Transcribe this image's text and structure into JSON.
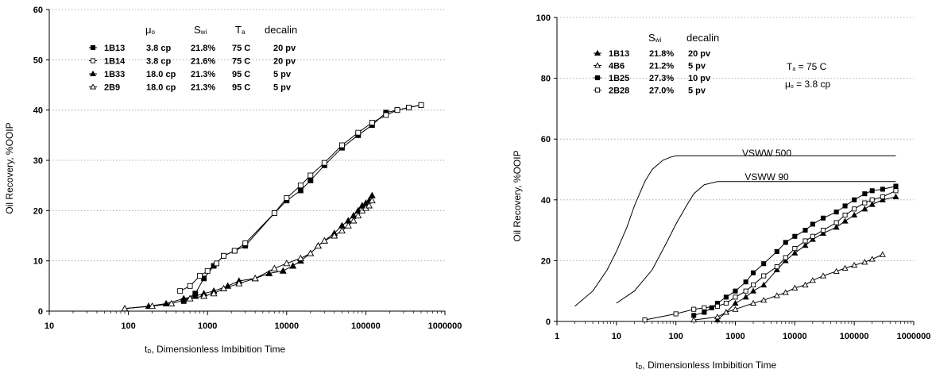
{
  "chart_data": [
    {
      "type": "line",
      "xscale": "log",
      "xlim": [
        10,
        1000000
      ],
      "ylim": [
        0,
        60
      ],
      "xticks": [
        10,
        100,
        1000,
        10000,
        100000,
        1000000
      ],
      "xtick_labels": [
        "10",
        "100",
        "1000",
        "10000",
        "100000",
        "1000000"
      ],
      "yticks": [
        0,
        10,
        20,
        30,
        40,
        50,
        60
      ],
      "ytick_labels": [
        "0",
        "10",
        "20",
        "30",
        "40",
        "50",
        "60"
      ],
      "xlabel_prefix": "t",
      "xlabel_sub": "D",
      "xlabel_rest": ", Dimensionless Imbibition Time",
      "ylabel": "Oil Recovery, %OOIP",
      "grid": "horizontal-dotted",
      "legend_header": [
        {
          "main": "μ",
          "sub": "o"
        },
        {
          "main": "S",
          "sub": "wi"
        },
        {
          "main": "T",
          "sub": "a"
        },
        {
          "main": "decalin",
          "sub": ""
        }
      ],
      "legend_rows": [
        [
          "1B13",
          "3.8 cp",
          "21.8%",
          "75 C",
          "20 pv"
        ],
        [
          "1B14",
          "3.8 cp",
          "21.6%",
          "75 C",
          "20 pv"
        ],
        [
          "1B33",
          "18.0 cp",
          "21.3%",
          "95 C",
          "5 pv"
        ],
        [
          "2B9",
          "18.0 cp",
          "21.3%",
          "95 C",
          "5 pv"
        ]
      ],
      "series": [
        {
          "name": "1B13",
          "marker": "filled-square",
          "x": [
            500,
            700,
            900,
            1200,
            1600,
            2200,
            3000,
            7000,
            10000,
            15000,
            20000,
            30000,
            50000,
            80000,
            120000,
            180000,
            250000,
            350000,
            500000
          ],
          "y": [
            2,
            3.5,
            6.5,
            9,
            11,
            12,
            13,
            19.5,
            22,
            24,
            26,
            29,
            32.5,
            35,
            37,
            39.5,
            40,
            40.5,
            41
          ]
        },
        {
          "name": "1B14",
          "marker": "open-square",
          "x": [
            450,
            600,
            800,
            1000,
            1300,
            1600,
            2200,
            3000,
            7000,
            10000,
            15000,
            20000,
            30000,
            50000,
            80000,
            120000,
            180000,
            250000,
            350000,
            500000
          ],
          "y": [
            4,
            5,
            7,
            8,
            9.5,
            11,
            12,
            13.5,
            19.5,
            22.5,
            25,
            27,
            29.5,
            33,
            35.5,
            37.5,
            39,
            40,
            40.5,
            41
          ]
        },
        {
          "name": "1B33",
          "marker": "filled-triangle",
          "x": [
            90,
            180,
            300,
            500,
            700,
            900,
            1200,
            1800,
            2500,
            4000,
            6000,
            9000,
            12000,
            15000,
            20000,
            25000,
            30000,
            40000,
            50000,
            60000,
            70000,
            80000,
            90000,
            100000,
            110000,
            120000
          ],
          "y": [
            0.5,
            1,
            1.5,
            2.5,
            3,
            3.5,
            4,
            5,
            6,
            6.5,
            7.5,
            8,
            9,
            10,
            11.5,
            13,
            14,
            15.5,
            17,
            18,
            19,
            20,
            21,
            21.5,
            22,
            23
          ]
        },
        {
          "name": "2B9",
          "marker": "open-triangle",
          "x": [
            90,
            200,
            350,
            600,
            900,
            1200,
            1600,
            2500,
            4000,
            7000,
            10000,
            15000,
            20000,
            25000,
            30000,
            40000,
            50000,
            60000,
            70000,
            80000,
            90000,
            100000,
            110000,
            120000
          ],
          "y": [
            0.5,
            1,
            1.5,
            2.5,
            3,
            3.5,
            4.5,
            5.5,
            6.5,
            8.5,
            9.5,
            10.5,
            11.5,
            13,
            14,
            15,
            16,
            17,
            18,
            19,
            20,
            20.5,
            21,
            22
          ]
        }
      ]
    },
    {
      "type": "line",
      "xscale": "log",
      "xlim": [
        1,
        1000000
      ],
      "ylim": [
        0,
        100
      ],
      "xticks": [
        1,
        10,
        100,
        1000,
        10000,
        100000,
        1000000
      ],
      "xtick_labels": [
        "1",
        "10",
        "100",
        "1000",
        "10000",
        "100000",
        "1000000"
      ],
      "yticks": [
        0,
        20,
        40,
        60,
        80,
        100
      ],
      "ytick_labels": [
        "0",
        "20",
        "40",
        "60",
        "80",
        "100"
      ],
      "xlabel_prefix": "t",
      "xlabel_sub": "D",
      "xlabel_rest": ", Dimensionless Imbibition Time",
      "ylabel": "Oil Recovery, %OOIP",
      "grid": "horizontal-dotted",
      "legend_header": [
        {
          "main": "S",
          "sub": "wi"
        },
        {
          "main": "decalin",
          "sub": ""
        }
      ],
      "legend_rows": [
        [
          "1B13",
          "21.8%",
          "20 pv"
        ],
        [
          "4B6",
          "21.2%",
          "5 pv"
        ],
        [
          "1B25",
          "27.3%",
          "10 pv"
        ],
        [
          "2B28",
          "27.0%",
          "5 pv"
        ]
      ],
      "conditions": [
        {
          "main": "T",
          "sub": "a",
          "rest": " = 75 C"
        },
        {
          "main": "μ",
          "sub": "o",
          "rest": " = 3.8 cp"
        }
      ],
      "curve_labels": [
        "VSWW 500",
        "VSWW 90"
      ],
      "series": [
        {
          "name": "1B13",
          "marker": "filled-triangle",
          "x": [
            500,
            700,
            1000,
            1500,
            2000,
            3000,
            5000,
            7000,
            10000,
            15000,
            20000,
            30000,
            50000,
            70000,
            100000,
            150000,
            200000,
            300000,
            500000
          ],
          "y": [
            0.5,
            3,
            6,
            8,
            10,
            12,
            17,
            20,
            22.5,
            25,
            27,
            29,
            31,
            33,
            35,
            37,
            38.5,
            40,
            41
          ]
        },
        {
          "name": "4B6",
          "marker": "open-triangle",
          "x": [
            200,
            500,
            700,
            1000,
            2000,
            3000,
            5000,
            7000,
            10000,
            15000,
            20000,
            30000,
            50000,
            70000,
            100000,
            150000,
            200000,
            300000
          ],
          "y": [
            0.5,
            1.5,
            3,
            4,
            6,
            7,
            8.5,
            9.5,
            11,
            12,
            13.5,
            15,
            16.5,
            17.5,
            18.5,
            19.5,
            20.5,
            22
          ]
        },
        {
          "name": "1B25",
          "marker": "filled-square",
          "x": [
            200,
            300,
            400,
            500,
            700,
            1000,
            1500,
            2000,
            3000,
            5000,
            7000,
            10000,
            15000,
            20000,
            30000,
            50000,
            70000,
            100000,
            150000,
            200000,
            300000,
            500000
          ],
          "y": [
            2,
            3,
            4.5,
            6,
            8,
            10,
            13,
            16,
            19,
            23,
            26,
            28,
            30,
            32,
            34,
            36,
            38,
            40,
            42,
            43,
            43.5,
            44.5
          ]
        },
        {
          "name": "2B28",
          "marker": "open-square",
          "x": [
            30,
            100,
            200,
            300,
            500,
            700,
            1000,
            1500,
            2000,
            3000,
            5000,
            7000,
            10000,
            15000,
            20000,
            30000,
            50000,
            70000,
            100000,
            150000,
            200000,
            300000,
            500000
          ],
          "y": [
            0.5,
            2.5,
            4,
            4.5,
            5,
            6,
            8,
            10,
            12,
            15,
            18,
            21,
            24,
            26.5,
            28,
            30,
            32.5,
            35,
            37,
            39,
            40,
            41,
            43
          ]
        },
        {
          "name": "VSWW 500",
          "marker": "none",
          "x": [
            2,
            4,
            7,
            10,
            15,
            20,
            30,
            40,
            60,
            80,
            100,
            150,
            300,
            500000
          ],
          "y": [
            5,
            10,
            17,
            23,
            31,
            38,
            46,
            50,
            53,
            54,
            54.5,
            54.5,
            54.5,
            54.5
          ]
        },
        {
          "name": "VSWW 90",
          "marker": "none",
          "x": [
            10,
            20,
            40,
            70,
            100,
            150,
            200,
            300,
            500,
            1000,
            500000
          ],
          "y": [
            6,
            10,
            17,
            26,
            32,
            38,
            42,
            45,
            46,
            46,
            46
          ]
        }
      ]
    }
  ]
}
